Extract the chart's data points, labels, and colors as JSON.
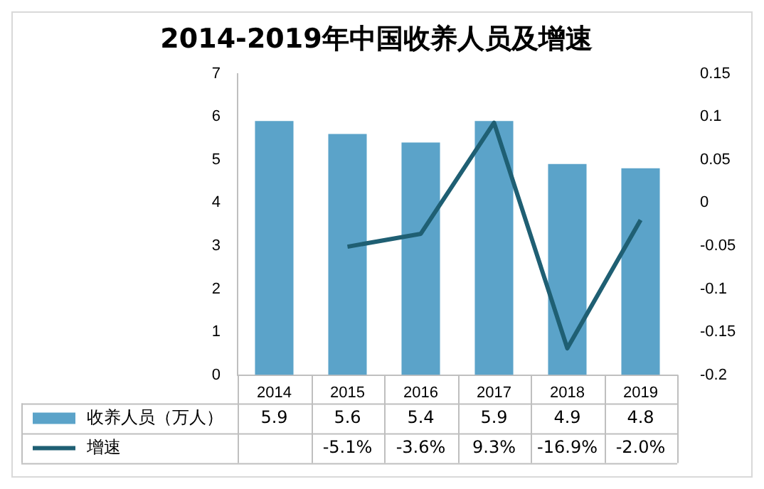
{
  "chart_data": {
    "type": "bar",
    "title": "2014-2019年中国收养人员及增速",
    "categories": [
      "2014",
      "2015",
      "2016",
      "2017",
      "2018",
      "2019"
    ],
    "series": [
      {
        "name": "收养人员（万人）",
        "color": "#5ba3c9",
        "values": [
          5.9,
          5.6,
          5.4,
          5.9,
          4.9,
          4.8
        ],
        "value_labels": [
          "5.9",
          "5.6",
          "5.4",
          "5.9",
          "4.9",
          "4.8"
        ]
      },
      {
        "name": "增速",
        "type": "line",
        "axis": "y2",
        "color": "#1f5f73",
        "values": [
          null,
          -0.051,
          -0.036,
          0.093,
          -0.169,
          -0.02
        ],
        "value_labels": [
          null,
          "-5.1%",
          "-3.6%",
          "9.3%",
          "-16.9%",
          "-2.0%"
        ]
      }
    ],
    "ylim": [
      0,
      7
    ],
    "yticks": [
      0,
      1,
      2,
      3,
      4,
      5,
      6,
      7
    ],
    "y2lim": [
      -0.2,
      0.15
    ],
    "y2ticks": [
      -0.2,
      -0.15,
      -0.1,
      -0.05,
      0,
      0.05,
      0.1,
      0.15
    ],
    "grid": false,
    "legend": "bottom",
    "marker": "none",
    "line_style": "solid"
  }
}
